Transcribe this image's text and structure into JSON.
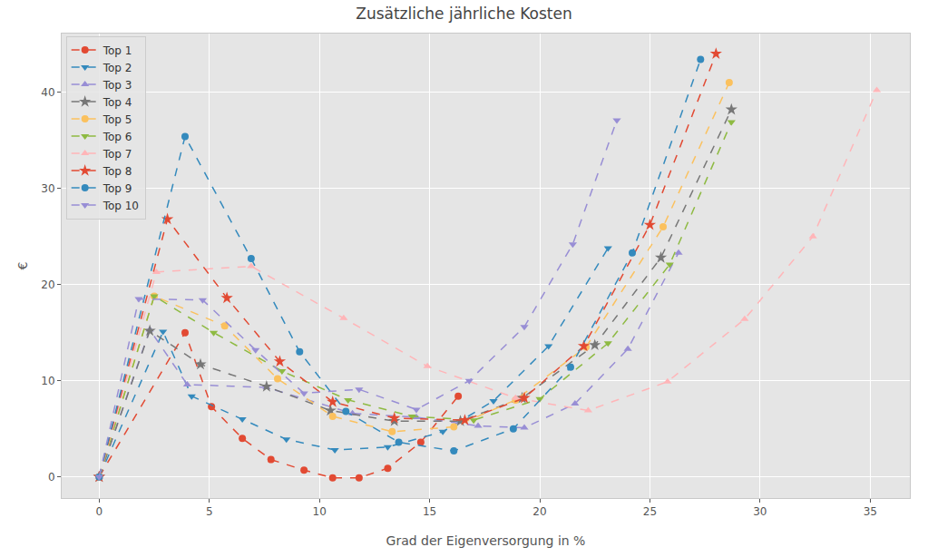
{
  "chart_data": {
    "type": "line",
    "title": "Zusätzliche jährliche Kosten",
    "x_label": "Grad der Eigenversorgung in %",
    "y_label": "€",
    "xlim": [
      -1.7,
      36.8
    ],
    "ylim": [
      -2.2,
      46.1
    ],
    "xticks": [
      0,
      5,
      10,
      15,
      20,
      25,
      30,
      35
    ],
    "yticks": [
      0,
      10,
      20,
      30,
      40
    ],
    "grid": true,
    "legend": "upper left",
    "line_style": "dashed",
    "series": [
      {
        "name": "Top 1",
        "color": "#E24A33",
        "marker": "circle",
        "x": [
          0,
          3.9,
          5.1,
          6.5,
          7.8,
          9.3,
          10.6,
          11.8,
          13.1,
          14.6,
          16.3
        ],
        "values": [
          0,
          15.0,
          7.3,
          4.0,
          1.8,
          0.7,
          -0.1,
          -0.1,
          0.9,
          3.6,
          8.4
        ]
      },
      {
        "name": "Top 2",
        "color": "#348ABD",
        "marker": "triangle-down",
        "x": [
          0,
          2.9,
          4.2,
          6.5,
          8.5,
          10.7,
          13.1,
          15.6,
          17.9,
          20.4,
          23.1
        ],
        "values": [
          0,
          15.1,
          8.4,
          6.0,
          3.9,
          2.8,
          3.1,
          4.7,
          7.9,
          13.6,
          23.8
        ]
      },
      {
        "name": "Top 3",
        "color": "#988ED5",
        "marker": "triangle-up",
        "x": [
          0,
          2.3,
          4.0,
          7.6,
          11.5,
          14.4,
          17.2,
          19.3,
          21.6,
          24.0,
          26.3
        ],
        "values": [
          0,
          15.3,
          9.6,
          9.3,
          6.6,
          6.2,
          5.3,
          5.1,
          7.6,
          13.3,
          23.3
        ]
      },
      {
        "name": "Top 4",
        "color": "#777777",
        "marker": "star",
        "x": [
          0,
          2.3,
          4.6,
          7.6,
          10.5,
          13.4,
          16.4,
          19.2,
          22.5,
          25.5,
          28.7
        ],
        "values": [
          0,
          15.2,
          11.7,
          9.4,
          6.9,
          5.8,
          5.8,
          8.2,
          13.7,
          22.8,
          38.2
        ]
      },
      {
        "name": "Top 5",
        "color": "#FBC15E",
        "marker": "circle",
        "x": [
          0,
          2.5,
          5.7,
          8.1,
          10.6,
          13.3,
          16.1,
          18.9,
          22.1,
          25.6,
          28.6
        ],
        "values": [
          0,
          18.8,
          15.7,
          10.2,
          6.3,
          4.7,
          5.2,
          8.0,
          13.5,
          26.0,
          41.0
        ]
      },
      {
        "name": "Top 6",
        "color": "#8EBA42",
        "marker": "triangle-down",
        "x": [
          0,
          2.5,
          5.2,
          8.3,
          11.3,
          14.2,
          17.0,
          20.0,
          23.1,
          25.9,
          28.7
        ],
        "values": [
          0,
          18.8,
          15.0,
          11.0,
          8.0,
          6.3,
          5.9,
          8.1,
          13.9,
          22.1,
          36.9
        ]
      },
      {
        "name": "Top 7",
        "color": "#FFB5B8",
        "marker": "triangle-up",
        "x": [
          0,
          2.6,
          6.9,
          11.1,
          14.9,
          18.9,
          22.2,
          25.8,
          29.3,
          32.4,
          35.3
        ],
        "values": [
          0,
          21.3,
          21.9,
          16.5,
          11.5,
          8.2,
          6.9,
          9.9,
          16.4,
          25.0,
          40.2
        ]
      },
      {
        "name": "Top 8",
        "color": "#E24A33",
        "marker": "star",
        "x": [
          0,
          3.1,
          5.8,
          8.2,
          10.6,
          13.4,
          16.6,
          19.3,
          22.0,
          25.0,
          28.0
        ],
        "values": [
          0,
          26.8,
          18.6,
          12.0,
          7.8,
          6.1,
          5.9,
          8.2,
          13.6,
          26.2,
          44.0
        ]
      },
      {
        "name": "Top 9",
        "color": "#348ABD",
        "marker": "circle",
        "x": [
          0,
          3.9,
          6.9,
          9.1,
          11.2,
          13.6,
          16.1,
          18.8,
          21.4,
          24.2,
          27.3
        ],
        "values": [
          0,
          35.4,
          22.7,
          13.0,
          6.8,
          3.6,
          2.7,
          5.0,
          11.4,
          23.3,
          43.4
        ]
      },
      {
        "name": "Top 10",
        "color": "#988ED5",
        "marker": "triangle-down",
        "x": [
          0,
          1.8,
          4.7,
          7.1,
          9.3,
          11.8,
          14.4,
          16.8,
          19.3,
          21.5,
          23.5
        ],
        "values": [
          0,
          18.5,
          18.4,
          13.2,
          8.7,
          9.1,
          7.0,
          10.0,
          15.6,
          24.2,
          37.1
        ]
      }
    ]
  }
}
